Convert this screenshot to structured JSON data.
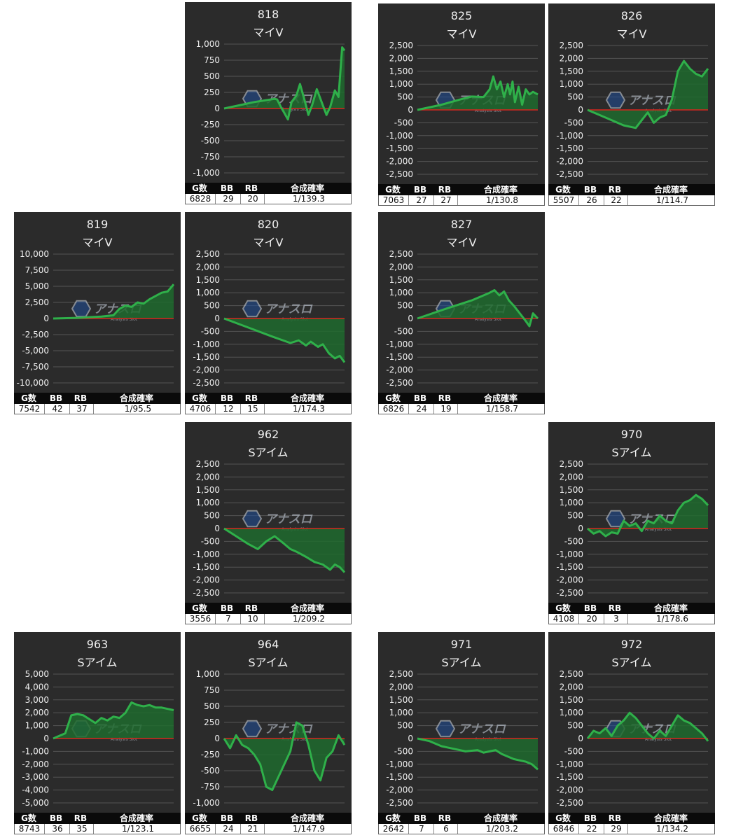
{
  "table_headers": [
    "G数",
    "BB",
    "RB",
    "合成確率"
  ],
  "colors": {
    "panel_bg": "#2b2b2b",
    "grid": "#555555",
    "zero_line": "#d8261e",
    "series_line": "#2fb04a",
    "series_fill": "#1f6a2e",
    "table_header_bg": "#0a0a0a",
    "table_value_bg": "#ffffff"
  },
  "watermark": {
    "text": "アナスロ",
    "subtext": "Analysis Slot"
  },
  "chart_data": [
    {
      "type": "area",
      "machine": "818",
      "model": "マイV",
      "yticks": [
        "1,000",
        "750",
        "500",
        "250",
        "0",
        "-250",
        "-500",
        "-750",
        "-1,000"
      ],
      "ylim": [
        -1000,
        1000
      ],
      "stats": [
        "6828",
        "29",
        "20",
        "1/139.3"
      ],
      "x": [
        0,
        0.25,
        0.42,
        0.44,
        0.47,
        0.5,
        0.53,
        0.56,
        0.6,
        0.63,
        0.67,
        0.7,
        0.73,
        0.77,
        0.81,
        0.85,
        0.88,
        0.92,
        0.95,
        0.98,
        1.0
      ],
      "y": [
        0,
        100,
        150,
        140,
        30,
        -70,
        -170,
        100,
        200,
        380,
        120,
        -100,
        50,
        300,
        100,
        -100,
        20,
        280,
        180,
        950,
        900
      ]
    },
    {
      "type": "area",
      "machine": "825",
      "model": "マイV",
      "yticks": [
        "2,500",
        "2,000",
        "1,500",
        "1,000",
        "500",
        "0",
        "-500",
        "-1,000",
        "-1,500",
        "-2,000",
        "-2,500"
      ],
      "ylim": [
        -2500,
        2500
      ],
      "stats": [
        "7063",
        "27",
        "27",
        "1/130.8"
      ],
      "x": [
        0,
        0.2,
        0.35,
        0.45,
        0.55,
        0.6,
        0.63,
        0.66,
        0.69,
        0.72,
        0.75,
        0.77,
        0.79,
        0.81,
        0.84,
        0.87,
        0.9,
        0.93,
        0.96,
        1.0
      ],
      "y": [
        0,
        200,
        400,
        520,
        500,
        800,
        1300,
        800,
        1100,
        500,
        1000,
        600,
        1100,
        300,
        900,
        200,
        800,
        600,
        700,
        600
      ]
    },
    {
      "type": "area",
      "machine": "826",
      "model": "マイV",
      "yticks": [
        "2,500",
        "2,000",
        "1,500",
        "1,000",
        "500",
        "0",
        "-500",
        "-1,000",
        "-1,500",
        "-2,000",
        "-2,500"
      ],
      "ylim": [
        -2500,
        2500
      ],
      "stats": [
        "5507",
        "26",
        "22",
        "1/114.7"
      ],
      "x": [
        0,
        0.15,
        0.3,
        0.4,
        0.45,
        0.5,
        0.55,
        0.6,
        0.65,
        0.7,
        0.75,
        0.8,
        0.85,
        0.9,
        0.95,
        1.0
      ],
      "y": [
        0,
        -300,
        -600,
        -700,
        -400,
        -100,
        -500,
        -300,
        -200,
        400,
        1500,
        1900,
        1600,
        1400,
        1300,
        1600
      ]
    },
    {
      "type": "area",
      "machine": "819",
      "model": "マイV",
      "yticks": [
        "10,000",
        "7,500",
        "5,000",
        "2,500",
        "0",
        "-2,500",
        "-5,000",
        "-7,500",
        "-10,000"
      ],
      "ylim": [
        -10000,
        10000
      ],
      "stats": [
        "7542",
        "42",
        "37",
        "1/95.5"
      ],
      "x": [
        0,
        0.2,
        0.4,
        0.5,
        0.55,
        0.6,
        0.65,
        0.7,
        0.75,
        0.8,
        0.85,
        0.9,
        0.95,
        1.0
      ],
      "y": [
        0,
        100,
        300,
        500,
        1500,
        2000,
        1800,
        2500,
        2300,
        3000,
        3500,
        4000,
        4200,
        5300
      ]
    },
    {
      "type": "area",
      "machine": "820",
      "model": "マイV",
      "yticks": [
        "2,500",
        "2,000",
        "1,500",
        "1,000",
        "500",
        "0",
        "-500",
        "-1,000",
        "-1,500",
        "-2,000",
        "-2,500"
      ],
      "ylim": [
        -2500,
        2500
      ],
      "stats": [
        "4706",
        "12",
        "15",
        "1/174.3"
      ],
      "x": [
        0,
        0.2,
        0.4,
        0.55,
        0.62,
        0.68,
        0.72,
        0.78,
        0.82,
        0.87,
        0.92,
        0.96,
        1.0
      ],
      "y": [
        0,
        -350,
        -700,
        -950,
        -850,
        -1050,
        -900,
        -1100,
        -1000,
        -1350,
        -1550,
        -1450,
        -1700
      ]
    },
    {
      "type": "area",
      "machine": "827",
      "model": "マイV",
      "yticks": [
        "2,500",
        "2,000",
        "1,500",
        "1,000",
        "500",
        "0",
        "-500",
        "-1,000",
        "-1,500",
        "-2,000",
        "-2,500"
      ],
      "ylim": [
        -2500,
        2500
      ],
      "stats": [
        "6826",
        "24",
        "19",
        "1/158.7"
      ],
      "x": [
        0,
        0.25,
        0.45,
        0.6,
        0.64,
        0.68,
        0.72,
        0.76,
        0.8,
        0.85,
        0.9,
        0.93,
        0.96,
        1.0
      ],
      "y": [
        0,
        400,
        700,
        1000,
        1100,
        900,
        1050,
        700,
        500,
        200,
        -100,
        -300,
        200,
        0
      ]
    },
    {
      "type": "area",
      "machine": "962",
      "model": "Sアイム",
      "yticks": [
        "2,500",
        "2,000",
        "1,500",
        "1,000",
        "500",
        "0",
        "-500",
        "-1,000",
        "-1,500",
        "-2,000",
        "-2,500"
      ],
      "ylim": [
        -2500,
        2500
      ],
      "stats": [
        "3556",
        "7",
        "10",
        "1/209.2"
      ],
      "x": [
        0,
        0.1,
        0.2,
        0.28,
        0.35,
        0.42,
        0.5,
        0.55,
        0.6,
        0.68,
        0.75,
        0.82,
        0.88,
        0.92,
        0.96,
        1.0
      ],
      "y": [
        0,
        -300,
        -600,
        -800,
        -500,
        -300,
        -600,
        -800,
        -900,
        -1100,
        -1300,
        -1400,
        -1600,
        -1400,
        -1500,
        -1700
      ]
    },
    {
      "type": "area",
      "machine": "970",
      "model": "Sアイム",
      "yticks": [
        "2,500",
        "2,000",
        "1,500",
        "1,000",
        "500",
        "0",
        "-500",
        "-1,000",
        "-1,500",
        "-2,000",
        "-2,500"
      ],
      "ylim": [
        -2500,
        2500
      ],
      "stats": [
        "4108",
        "20",
        "3",
        "1/178.6"
      ],
      "x": [
        0,
        0.05,
        0.1,
        0.15,
        0.2,
        0.25,
        0.3,
        0.35,
        0.4,
        0.45,
        0.5,
        0.55,
        0.6,
        0.65,
        0.7,
        0.75,
        0.8,
        0.85,
        0.9,
        0.95,
        1.0
      ],
      "y": [
        0,
        -200,
        -100,
        -300,
        -150,
        -200,
        300,
        100,
        200,
        -100,
        300,
        200,
        500,
        300,
        200,
        700,
        1000,
        1100,
        1300,
        1150,
        900
      ]
    },
    {
      "type": "area",
      "machine": "963",
      "model": "Sアイム",
      "yticks": [
        "5,000",
        "4,000",
        "3,000",
        "2,000",
        "1,000",
        "0",
        "-1,000",
        "-2,000",
        "-3,000",
        "-4,000",
        "-5,000"
      ],
      "ylim": [
        -5000,
        5000
      ],
      "stats": [
        "8743",
        "36",
        "35",
        "1/123.1"
      ],
      "x": [
        0,
        0.05,
        0.1,
        0.15,
        0.2,
        0.25,
        0.3,
        0.35,
        0.4,
        0.45,
        0.5,
        0.55,
        0.6,
        0.65,
        0.7,
        0.75,
        0.8,
        0.85,
        0.9,
        0.95,
        1.0
      ],
      "y": [
        0,
        200,
        400,
        1800,
        1900,
        1800,
        1500,
        1200,
        1600,
        1400,
        1700,
        1600,
        2000,
        2800,
        2600,
        2500,
        2600,
        2400,
        2400,
        2300,
        2200
      ]
    },
    {
      "type": "area",
      "machine": "964",
      "model": "Sアイム",
      "yticks": [
        "1,000",
        "750",
        "500",
        "250",
        "0",
        "-250",
        "-500",
        "-750",
        "-1,000"
      ],
      "ylim": [
        -1000,
        1000
      ],
      "stats": [
        "6655",
        "24",
        "21",
        "1/147.9"
      ],
      "x": [
        0,
        0.05,
        0.1,
        0.15,
        0.2,
        0.25,
        0.3,
        0.35,
        0.4,
        0.45,
        0.5,
        0.55,
        0.6,
        0.65,
        0.7,
        0.75,
        0.8,
        0.85,
        0.9,
        0.95,
        1.0
      ],
      "y": [
        0,
        -150,
        50,
        -100,
        -150,
        -250,
        -400,
        -750,
        -800,
        -600,
        -400,
        -200,
        250,
        200,
        -100,
        -500,
        -650,
        -300,
        -200,
        50,
        -100
      ]
    },
    {
      "type": "area",
      "machine": "971",
      "model": "Sアイム",
      "yticks": [
        "2,500",
        "2,000",
        "1,500",
        "1,000",
        "500",
        "0",
        "-500",
        "-1,000",
        "-1,500",
        "-2,000",
        "-2,500"
      ],
      "ylim": [
        -2500,
        2500
      ],
      "stats": [
        "2642",
        "7",
        "6",
        "1/203.2"
      ],
      "x": [
        0,
        0.1,
        0.2,
        0.3,
        0.4,
        0.5,
        0.55,
        0.6,
        0.65,
        0.7,
        0.75,
        0.8,
        0.85,
        0.9,
        0.95,
        1.0
      ],
      "y": [
        0,
        -100,
        -300,
        -400,
        -500,
        -450,
        -550,
        -500,
        -450,
        -600,
        -700,
        -800,
        -850,
        -900,
        -1000,
        -1200
      ]
    },
    {
      "type": "area",
      "machine": "972",
      "model": "Sアイム",
      "yticks": [
        "2,500",
        "2,000",
        "1,500",
        "1,000",
        "500",
        "0",
        "-500",
        "-1,000",
        "-1,500",
        "-2,000",
        "-2,500"
      ],
      "ylim": [
        -2500,
        2500
      ],
      "stats": [
        "6846",
        "22",
        "29",
        "1/134.2"
      ],
      "x": [
        0,
        0.05,
        0.1,
        0.15,
        0.2,
        0.25,
        0.3,
        0.35,
        0.4,
        0.45,
        0.5,
        0.55,
        0.6,
        0.65,
        0.7,
        0.75,
        0.8,
        0.85,
        0.9,
        0.95,
        1.0
      ],
      "y": [
        0,
        300,
        200,
        400,
        100,
        500,
        700,
        1000,
        800,
        500,
        200,
        0,
        300,
        100,
        500,
        900,
        700,
        600,
        400,
        200,
        -100
      ]
    }
  ]
}
